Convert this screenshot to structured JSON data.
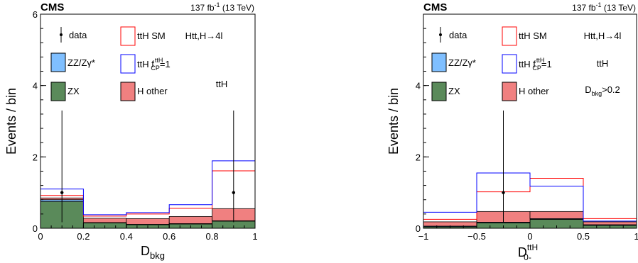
{
  "panels": [
    {
      "experiment": "CMS",
      "lumi_main": "137 fb",
      "lumi_sup": "-1",
      "lumi_tail": " (13 TeV)",
      "ylabel": "Events / bin",
      "xlabel_main": "D",
      "xlabel_sub": "bkg",
      "xlabel_sup": "",
      "annotations": [
        "Htt,H→4l",
        "ttH"
      ],
      "cut_main": "",
      "cut_sub": "",
      "cut_tail": ""
    },
    {
      "experiment": "CMS",
      "lumi_main": "137 fb",
      "lumi_sup": "-1",
      "lumi_tail": " (13 TeV)",
      "ylabel": "Events / bin",
      "xlabel_main": "D",
      "xlabel_sub": "0-",
      "xlabel_sup": "ttH",
      "annotations": [
        "Htt,H→4l",
        "ttH"
      ],
      "cut_main": "D",
      "cut_sub": "bkg",
      "cut_tail": ">0.2"
    }
  ],
  "legend": {
    "data": "data",
    "zz": "ZZ/Zγ*",
    "zx": "ZX",
    "tth_sm": "ttH SM",
    "tth_cp_main": "ttH f",
    "tth_cp_sup": "ttH",
    "tth_cp_sub": "CP",
    "tth_cp_tail": "=1",
    "h_other": "H other"
  },
  "colors": {
    "zz": "#7fbfff",
    "zx": "#5a8a5a",
    "h_other": "#f08080",
    "tth_sm": "#ff0000",
    "tth_cp": "#0000ff",
    "data": "#000000"
  },
  "chart_data": [
    {
      "type": "bar",
      "stacked": true,
      "bin_edges": [
        0,
        0.2,
        0.4,
        0.6,
        0.8,
        1.0
      ],
      "xlim": [
        0,
        1
      ],
      "ylim": [
        0,
        6
      ],
      "x_ticks": [
        0,
        0.2,
        0.4,
        0.6,
        0.8,
        1
      ],
      "y_ticks": [
        0,
        2,
        4,
        6
      ],
      "x_tick_labels": [
        "0",
        "0.2",
        "0.4",
        "0.6",
        "0.8",
        "1"
      ],
      "y_tick_labels": [
        "0",
        "2",
        "4",
        "6"
      ],
      "series": [
        {
          "name": "ZX",
          "key": "zx",
          "values": [
            0.75,
            0.15,
            0.1,
            0.12,
            0.2
          ]
        },
        {
          "name": "ZZ/Zγ*",
          "key": "zz",
          "values": [
            0.05,
            0.01,
            0.01,
            0.01,
            0.01
          ]
        },
        {
          "name": "H other",
          "key": "h_other",
          "values": [
            0.05,
            0.12,
            0.16,
            0.2,
            0.34
          ]
        },
        {
          "name": "ttH SM",
          "key": "tth_sm",
          "style": "line",
          "totals": [
            0.92,
            0.34,
            0.4,
            0.56,
            1.61
          ]
        },
        {
          "name": "ttH f_CP=1",
          "key": "tth_cp",
          "style": "line",
          "totals": [
            1.1,
            0.38,
            0.44,
            0.66,
            1.89
          ]
        }
      ],
      "data_points": [
        {
          "x": 0.1,
          "y": 1,
          "err_low": 0.83,
          "err_high": 2.3
        },
        {
          "x": 0.9,
          "y": 1,
          "err_low": 0.83,
          "err_high": 2.3
        }
      ],
      "xlabel": "D_bkg",
      "ylabel": "Events / bin"
    },
    {
      "type": "bar",
      "stacked": true,
      "bin_edges": [
        -1,
        -0.5,
        0,
        0.5,
        1
      ],
      "xlim": [
        -1,
        1
      ],
      "ylim": [
        0,
        6
      ],
      "x_ticks": [
        -1,
        -0.5,
        0,
        0.5,
        1
      ],
      "y_ticks": [
        0,
        2,
        4
      ],
      "x_tick_labels": [
        "−1",
        "−0.5",
        "0",
        "0.5",
        "1"
      ],
      "y_tick_labels": [
        "0",
        "2",
        "4"
      ],
      "series": [
        {
          "name": "ZX",
          "key": "zx",
          "values": [
            0.04,
            0.15,
            0.25,
            0.08
          ]
        },
        {
          "name": "ZZ/Zγ*",
          "key": "zz",
          "values": [
            0.02,
            0.02,
            0.02,
            0.02
          ]
        },
        {
          "name": "H other",
          "key": "h_other",
          "values": [
            0.12,
            0.3,
            0.2,
            0.08
          ]
        },
        {
          "name": "ttH SM",
          "key": "tth_sm",
          "style": "line",
          "totals": [
            0.25,
            1.02,
            1.4,
            0.27
          ]
        },
        {
          "name": "ttH f_CP=1",
          "key": "tth_cp",
          "style": "line",
          "totals": [
            0.45,
            1.55,
            1.18,
            0.2
          ]
        }
      ],
      "data_points": [
        {
          "x": -0.25,
          "y": 1,
          "err_low": 0.83,
          "err_high": 2.3
        }
      ],
      "xlabel": "D_0-^ttH",
      "ylabel": "Events / bin"
    }
  ]
}
